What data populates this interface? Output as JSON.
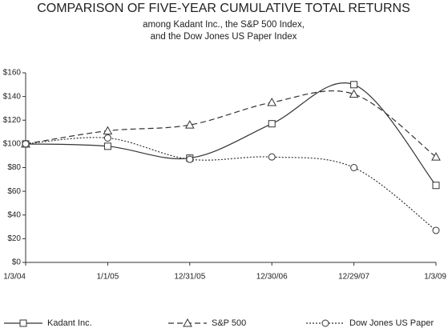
{
  "chart_data": {
    "type": "line",
    "title": "COMPARISON OF FIVE-YEAR CUMULATIVE TOTAL RETURNS",
    "subtitle": [
      "among Kadant Inc., the S&P 500 Index,",
      "and the Dow Jones US Paper Index"
    ],
    "categories": [
      "1/3/04",
      "1/1/05",
      "12/31/05",
      "12/30/06",
      "12/29/07",
      "1/3/09"
    ],
    "series": [
      {
        "name": "Kadant Inc.",
        "color": "#333333",
        "marker": "square",
        "dash": "none",
        "values": [
          100,
          98,
          88,
          117,
          150,
          65
        ]
      },
      {
        "name": "S&P 500",
        "color": "#333333",
        "marker": "triangle",
        "dash": "7 4",
        "values": [
          100,
          111,
          116,
          135,
          142,
          89
        ]
      },
      {
        "name": "Dow Jones US Paper",
        "color": "#333333",
        "marker": "circle",
        "dash": "2 2",
        "values": [
          100,
          105,
          87,
          89,
          80,
          27
        ]
      }
    ],
    "ylim": [
      0,
      160
    ],
    "yticks": [
      {
        "value": 0,
        "label": "$0"
      },
      {
        "value": 20,
        "label": "$20"
      },
      {
        "value": 40,
        "label": "$40"
      },
      {
        "value": 60,
        "label": "$60"
      },
      {
        "value": 80,
        "label": "$80"
      },
      {
        "value": 100,
        "label": "$100"
      },
      {
        "value": 120,
        "label": "$120"
      },
      {
        "value": 140,
        "label": "$140"
      },
      {
        "value": 160,
        "label": "$160"
      }
    ],
    "grid": false,
    "legend": "bottom"
  }
}
